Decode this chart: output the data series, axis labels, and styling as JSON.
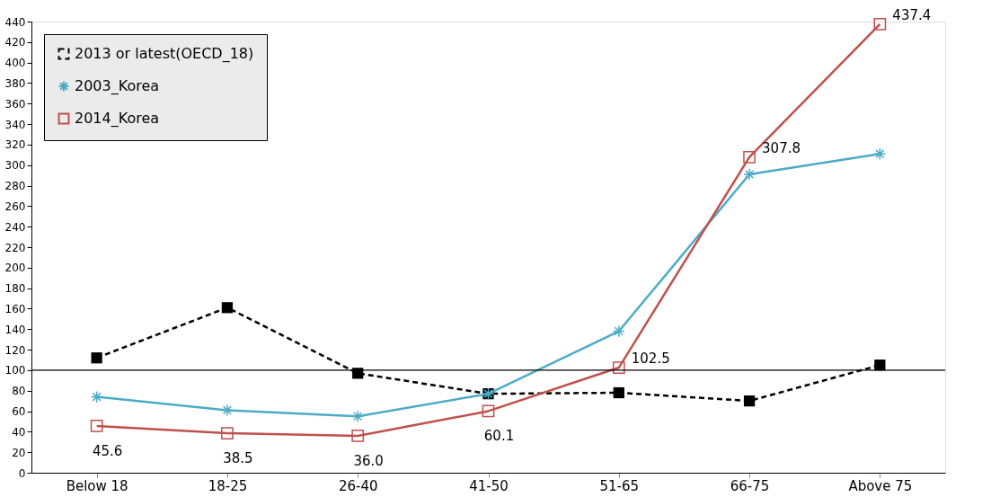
{
  "chart_data": {
    "type": "line",
    "categories": [
      "Below 18",
      "18-25",
      "26-40",
      "41-50",
      "51-65",
      "66-75",
      "Above 75"
    ],
    "series": [
      {
        "name": "2013 or latest(OECD_18)",
        "color": "#000000",
        "marker": "square",
        "line_style": "dashed",
        "values": [
          112,
          161,
          97,
          77,
          78,
          70,
          105
        ]
      },
      {
        "name": "2003_Korea",
        "color": "#4bacc6",
        "marker": "cross",
        "line_style": "solid",
        "values": [
          74,
          61,
          55,
          77,
          138,
          291,
          311
        ]
      },
      {
        "name": "2014_Korea",
        "color": "#c0504d",
        "marker": "square",
        "line_style": "solid",
        "values": [
          45.6,
          38.5,
          36.0,
          60.1,
          102.5,
          307.8,
          437.4
        ],
        "value_labels": [
          "45.6",
          "38.5",
          "36.0",
          "60.1",
          "102.5",
          "307.8",
          "437.4"
        ]
      }
    ],
    "ylim": [
      0,
      440
    ],
    "yticks": [
      0,
      20,
      40,
      60,
      80,
      100,
      120,
      140,
      160,
      180,
      200,
      220,
      240,
      260,
      280,
      300,
      320,
      340,
      360,
      380,
      400,
      420,
      440
    ],
    "ref_lines": [
      {
        "axis": "y",
        "value": 100,
        "label": null,
        "color": "#000000",
        "line_style": "solid"
      }
    ],
    "grid": false,
    "legend": "top left"
  }
}
